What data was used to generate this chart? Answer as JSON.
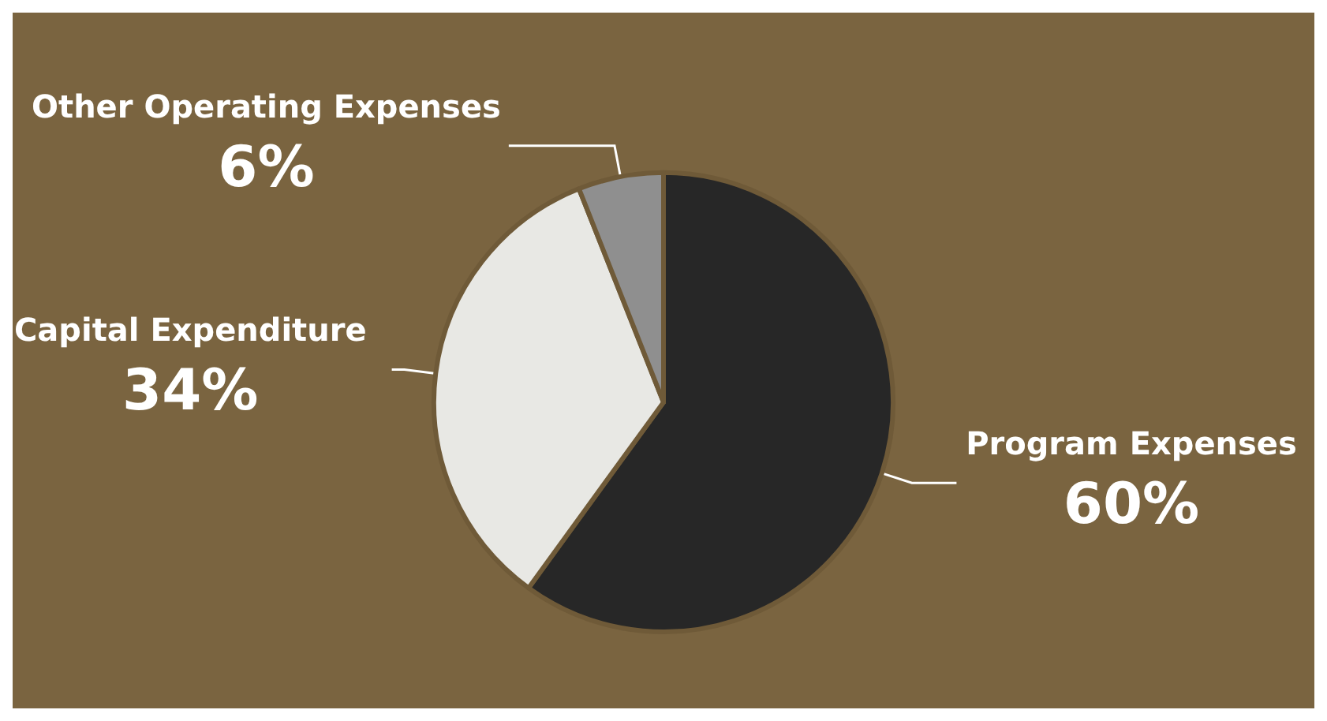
{
  "chart_data": {
    "type": "pie",
    "categories": [
      "Program Expenses",
      "Capital Expenditure",
      "Other Operating Expenses"
    ],
    "values": [
      60,
      34,
      6
    ],
    "colors": [
      "#272727",
      "#e8e8e4",
      "#8f8f8f"
    ],
    "value_labels": [
      "60%",
      "34%",
      "6%"
    ],
    "legend": false
  }
}
